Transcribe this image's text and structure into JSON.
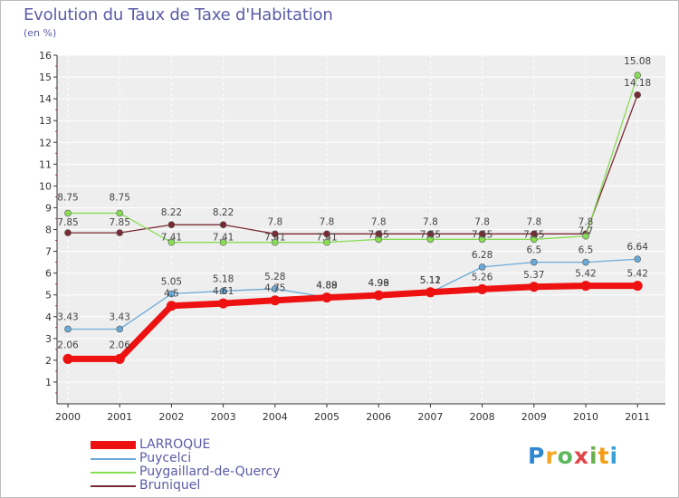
{
  "header": {
    "title": "Evolution du Taux de Taxe d'Habitation",
    "unit": "(en %)"
  },
  "logo": {
    "letters": [
      "P",
      "r",
      "o",
      "x",
      "i",
      "t",
      "i"
    ],
    "colors": [
      "#2f86d1",
      "#f5a623",
      "#5cb85c",
      "#e04646",
      "#6ab04c",
      "#f39c12",
      "#3aa0d8"
    ]
  },
  "chart_data": {
    "type": "line",
    "title": "Evolution du Taux de Taxe d'Habitation",
    "ylabel": "(en %)",
    "xlabel": "",
    "x": [
      "2000",
      "2001",
      "2002",
      "2003",
      "2004",
      "2005",
      "2006",
      "2007",
      "2008",
      "2009",
      "2010",
      "2011"
    ],
    "ylim": [
      0,
      16
    ],
    "y_ticks": [
      "1",
      "2",
      "3",
      "4",
      "5",
      "6",
      "7",
      "8",
      "9",
      "10",
      "11",
      "12",
      "13",
      "14",
      "15",
      "16"
    ],
    "grid": true,
    "legend_position": "bottom-left",
    "series": [
      {
        "name": "LARROQUE",
        "color": "#ee1111",
        "values": [
          2.06,
          2.06,
          4.5,
          4.61,
          4.75,
          4.88,
          4.98,
          5.12,
          5.26,
          5.37,
          5.42,
          5.42
        ],
        "labels": [
          "2.06",
          "2.06",
          "4.5",
          "4.61",
          "4.75",
          "4.88",
          "4.98",
          "5.12",
          "5.26",
          "5.37",
          "5.42",
          "5.42"
        ]
      },
      {
        "name": "Puycelci",
        "color": "#6aaad8",
        "values": [
          3.43,
          3.43,
          5.05,
          5.18,
          5.28,
          4.89,
          4.99,
          5.11,
          6.28,
          6.5,
          6.5,
          6.64
        ],
        "labels": [
          "3.43",
          "3.43",
          "5.05",
          "5.18",
          "5.28",
          "4.89",
          "4.99",
          "5.11",
          "6.28",
          "6.5",
          "6.5",
          "6.64"
        ]
      },
      {
        "name": "Puygaillard-de-Quercy",
        "color": "#88dd55",
        "values": [
          8.75,
          8.75,
          7.41,
          7.41,
          7.41,
          7.41,
          7.55,
          7.55,
          7.55,
          7.55,
          7.7,
          15.08
        ],
        "labels": [
          "8.75",
          "8.75",
          "7.41",
          "7.41",
          "7.41",
          "7.41",
          "7.55",
          "7.55",
          "7.55",
          "7.55",
          "7.7",
          "15.08"
        ]
      },
      {
        "name": "Bruniquel",
        "color": "#7a2a33",
        "values": [
          7.85,
          7.85,
          8.22,
          8.22,
          7.8,
          7.8,
          7.8,
          7.8,
          7.8,
          7.8,
          7.8,
          14.18
        ],
        "labels": [
          "7.85",
          "7.85",
          "8.22",
          "8.22",
          "7.8",
          "7.8",
          "7.8",
          "7.8",
          "7.8",
          "7.8",
          "7.8",
          "14.18"
        ]
      }
    ]
  }
}
